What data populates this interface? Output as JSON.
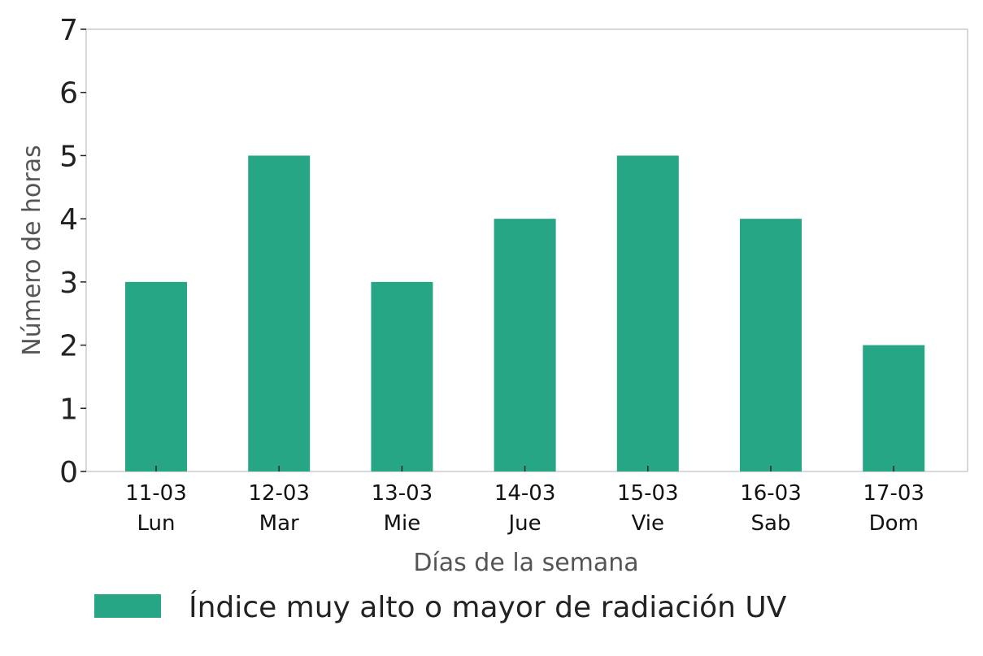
{
  "chart_data": {
    "type": "bar",
    "categories": [
      {
        "date": "11-03",
        "day": "Lun"
      },
      {
        "date": "12-03",
        "day": "Mar"
      },
      {
        "date": "13-03",
        "day": "Mie"
      },
      {
        "date": "14-03",
        "day": "Jue"
      },
      {
        "date": "15-03",
        "day": "Vie"
      },
      {
        "date": "16-03",
        "day": "Sab"
      },
      {
        "date": "17-03",
        "day": "Dom"
      }
    ],
    "series": [
      {
        "name": "Índice muy alto o mayor de radiación UV",
        "values": [
          3,
          5,
          3,
          4,
          5,
          4,
          2
        ],
        "color": "#27a686"
      }
    ],
    "xlabel": "Días de la semana",
    "ylabel": "Número de horas",
    "ylim": [
      0,
      7
    ],
    "yticks": [
      0,
      1,
      2,
      3,
      4,
      5,
      6,
      7
    ],
    "grid": false,
    "legend": "bottom"
  }
}
